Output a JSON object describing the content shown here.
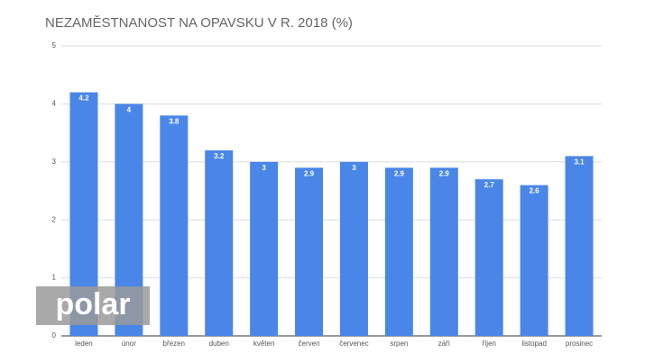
{
  "chart_data": {
    "type": "bar",
    "title": "NEZAMĚSTNANOST NA OPAVSKU V R. 2018 (%)",
    "categories": [
      "leden",
      "únor",
      "březen",
      "duben",
      "květen",
      "červen",
      "červenec",
      "srpen",
      "září",
      "říjen",
      "listopad",
      "prosinec"
    ],
    "values": [
      4.2,
      4,
      3.8,
      3.2,
      3,
      2.9,
      3,
      2.9,
      2.9,
      2.7,
      2.6,
      3.1
    ],
    "color": "#4a86e8",
    "ylim": [
      0,
      5
    ],
    "yticks": [
      0,
      1,
      2,
      3,
      4,
      5
    ],
    "grid": true,
    "data_labels": true
  },
  "watermark": "polar"
}
